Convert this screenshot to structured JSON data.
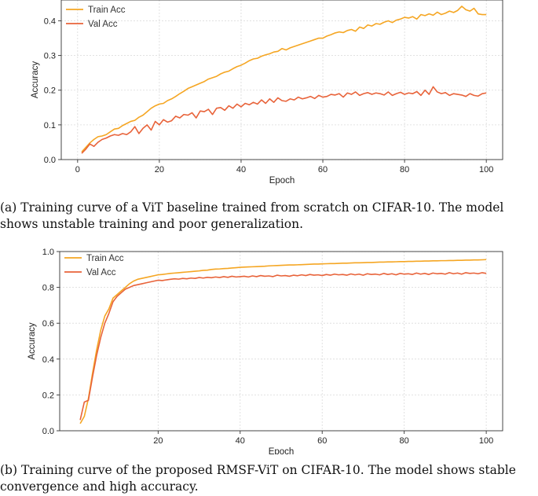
{
  "captions": {
    "a": "(a) Training curve of a ViT baseline trained from scratch on CIFAR-10. The model shows unstable training and poor generalization.",
    "b": "(b) Training curve of the proposed RMSF-ViT on CIFAR-10. The model shows stable convergence and high accuracy."
  },
  "colors": {
    "train": "#f5a623",
    "val": "#e8633a",
    "grid": "#d9d9d9"
  },
  "chart_data": [
    {
      "type": "line",
      "title": "",
      "xlabel": "Epoch",
      "ylabel": "Accuracy",
      "xlim": [
        -4,
        104
      ],
      "ylim": [
        0.0,
        0.46
      ],
      "xticks": [
        0,
        20,
        40,
        60,
        80,
        100
      ],
      "yticks": [
        0.0,
        0.1,
        0.2,
        0.3,
        0.4
      ],
      "ytick_labels": [
        "0.0",
        "0.1",
        "0.2",
        "0.3",
        "0.4"
      ],
      "grid": true,
      "legend": "top-left",
      "x": [
        1,
        2,
        3,
        4,
        5,
        6,
        7,
        8,
        9,
        10,
        11,
        12,
        13,
        14,
        15,
        16,
        17,
        18,
        19,
        20,
        21,
        22,
        23,
        24,
        25,
        26,
        27,
        28,
        29,
        30,
        31,
        32,
        33,
        34,
        35,
        36,
        37,
        38,
        39,
        40,
        41,
        42,
        43,
        44,
        45,
        46,
        47,
        48,
        49,
        50,
        51,
        52,
        53,
        54,
        55,
        56,
        57,
        58,
        59,
        60,
        61,
        62,
        63,
        64,
        65,
        66,
        67,
        68,
        69,
        70,
        71,
        72,
        73,
        74,
        75,
        76,
        77,
        78,
        79,
        80,
        81,
        82,
        83,
        84,
        85,
        86,
        87,
        88,
        89,
        90,
        91,
        92,
        93,
        94,
        95,
        96,
        97,
        98,
        99,
        100
      ],
      "series": [
        {
          "name": "Train Acc",
          "values": [
            0.022,
            0.035,
            0.048,
            0.058,
            0.066,
            0.068,
            0.072,
            0.08,
            0.088,
            0.09,
            0.098,
            0.104,
            0.11,
            0.113,
            0.122,
            0.128,
            0.138,
            0.148,
            0.155,
            0.16,
            0.162,
            0.17,
            0.175,
            0.182,
            0.19,
            0.197,
            0.205,
            0.21,
            0.215,
            0.22,
            0.225,
            0.232,
            0.236,
            0.24,
            0.247,
            0.252,
            0.255,
            0.262,
            0.268,
            0.272,
            0.278,
            0.285,
            0.29,
            0.292,
            0.298,
            0.302,
            0.305,
            0.31,
            0.312,
            0.32,
            0.316,
            0.322,
            0.326,
            0.33,
            0.334,
            0.338,
            0.342,
            0.346,
            0.35,
            0.35,
            0.356,
            0.36,
            0.365,
            0.368,
            0.366,
            0.372,
            0.375,
            0.37,
            0.382,
            0.378,
            0.388,
            0.385,
            0.392,
            0.39,
            0.396,
            0.4,
            0.395,
            0.402,
            0.405,
            0.41,
            0.408,
            0.412,
            0.405,
            0.418,
            0.415,
            0.42,
            0.416,
            0.425,
            0.418,
            0.422,
            0.428,
            0.424,
            0.43,
            0.442,
            0.432,
            0.428,
            0.436,
            0.42,
            0.418,
            0.418
          ]
        },
        {
          "name": "Val Acc",
          "values": [
            0.018,
            0.03,
            0.045,
            0.038,
            0.05,
            0.058,
            0.062,
            0.068,
            0.072,
            0.07,
            0.075,
            0.072,
            0.08,
            0.095,
            0.075,
            0.09,
            0.1,
            0.085,
            0.11,
            0.1,
            0.115,
            0.108,
            0.112,
            0.125,
            0.12,
            0.13,
            0.128,
            0.135,
            0.12,
            0.14,
            0.138,
            0.145,
            0.13,
            0.148,
            0.15,
            0.142,
            0.155,
            0.148,
            0.16,
            0.152,
            0.162,
            0.158,
            0.165,
            0.16,
            0.172,
            0.162,
            0.175,
            0.165,
            0.178,
            0.17,
            0.168,
            0.175,
            0.172,
            0.18,
            0.175,
            0.178,
            0.182,
            0.176,
            0.185,
            0.18,
            0.182,
            0.188,
            0.186,
            0.19,
            0.18,
            0.192,
            0.188,
            0.195,
            0.185,
            0.19,
            0.193,
            0.188,
            0.192,
            0.19,
            0.186,
            0.195,
            0.185,
            0.19,
            0.194,
            0.188,
            0.192,
            0.19,
            0.196,
            0.185,
            0.2,
            0.188,
            0.21,
            0.195,
            0.19,
            0.193,
            0.185,
            0.19,
            0.188,
            0.186,
            0.182,
            0.19,
            0.185,
            0.183,
            0.19,
            0.192
          ]
        }
      ]
    },
    {
      "type": "line",
      "title": "",
      "xlabel": "Epoch",
      "ylabel": "Accuracy",
      "xlim": [
        -4,
        104
      ],
      "ylim": [
        0.0,
        1.0
      ],
      "xticks": [
        20,
        40,
        60,
        80,
        100
      ],
      "yticks": [
        0.0,
        0.2,
        0.4,
        0.6,
        0.8,
        1.0
      ],
      "ytick_labels": [
        "0.0",
        "0.2",
        "0.4",
        "0.6",
        "0.8",
        "1.0"
      ],
      "grid": true,
      "legend": "top-left",
      "x": [
        1,
        2,
        3,
        4,
        5,
        6,
        7,
        8,
        9,
        10,
        11,
        12,
        13,
        14,
        15,
        16,
        17,
        18,
        19,
        20,
        21,
        22,
        23,
        24,
        25,
        26,
        27,
        28,
        29,
        30,
        31,
        32,
        33,
        34,
        35,
        36,
        37,
        38,
        39,
        40,
        41,
        42,
        43,
        44,
        45,
        46,
        47,
        48,
        49,
        50,
        51,
        52,
        53,
        54,
        55,
        56,
        57,
        58,
        59,
        60,
        61,
        62,
        63,
        64,
        65,
        66,
        67,
        68,
        69,
        70,
        71,
        72,
        73,
        74,
        75,
        76,
        77,
        78,
        79,
        80,
        81,
        82,
        83,
        84,
        85,
        86,
        87,
        88,
        89,
        90,
        91,
        92,
        93,
        94,
        95,
        96,
        97,
        98,
        99,
        100
      ],
      "series": [
        {
          "name": "Train Acc",
          "values": [
            0.04,
            0.08,
            0.18,
            0.32,
            0.45,
            0.56,
            0.64,
            0.68,
            0.74,
            0.76,
            0.78,
            0.8,
            0.82,
            0.835,
            0.845,
            0.85,
            0.855,
            0.86,
            0.865,
            0.87,
            0.872,
            0.875,
            0.878,
            0.88,
            0.882,
            0.884,
            0.886,
            0.888,
            0.89,
            0.892,
            0.895,
            0.896,
            0.9,
            0.902,
            0.903,
            0.905,
            0.906,
            0.908,
            0.91,
            0.912,
            0.913,
            0.914,
            0.915,
            0.916,
            0.917,
            0.918,
            0.92,
            0.921,
            0.922,
            0.923,
            0.924,
            0.925,
            0.925,
            0.926,
            0.927,
            0.928,
            0.929,
            0.93,
            0.93,
            0.931,
            0.932,
            0.933,
            0.933,
            0.934,
            0.935,
            0.935,
            0.936,
            0.937,
            0.937,
            0.938,
            0.939,
            0.939,
            0.94,
            0.941,
            0.941,
            0.942,
            0.942,
            0.943,
            0.944,
            0.944,
            0.945,
            0.945,
            0.946,
            0.946,
            0.947,
            0.947,
            0.948,
            0.948,
            0.949,
            0.949,
            0.95,
            0.95,
            0.951,
            0.951,
            0.952,
            0.952,
            0.953,
            0.953,
            0.954,
            0.955
          ]
        },
        {
          "name": "Val Acc",
          "values": [
            0.06,
            0.16,
            0.17,
            0.3,
            0.42,
            0.52,
            0.6,
            0.655,
            0.72,
            0.75,
            0.77,
            0.79,
            0.8,
            0.81,
            0.815,
            0.82,
            0.825,
            0.83,
            0.835,
            0.84,
            0.838,
            0.842,
            0.845,
            0.848,
            0.846,
            0.85,
            0.848,
            0.852,
            0.85,
            0.855,
            0.852,
            0.856,
            0.854,
            0.858,
            0.855,
            0.86,
            0.856,
            0.862,
            0.858,
            0.86,
            0.862,
            0.858,
            0.864,
            0.86,
            0.866,
            0.862,
            0.864,
            0.86,
            0.868,
            0.864,
            0.866,
            0.862,
            0.868,
            0.865,
            0.87,
            0.866,
            0.872,
            0.868,
            0.87,
            0.866,
            0.872,
            0.868,
            0.874,
            0.87,
            0.872,
            0.868,
            0.875,
            0.87,
            0.874,
            0.868,
            0.876,
            0.872,
            0.874,
            0.87,
            0.878,
            0.872,
            0.876,
            0.87,
            0.878,
            0.874,
            0.876,
            0.872,
            0.88,
            0.874,
            0.878,
            0.872,
            0.88,
            0.876,
            0.878,
            0.874,
            0.882,
            0.876,
            0.88,
            0.874,
            0.882,
            0.878,
            0.88,
            0.876,
            0.882,
            0.878
          ]
        }
      ]
    }
  ]
}
